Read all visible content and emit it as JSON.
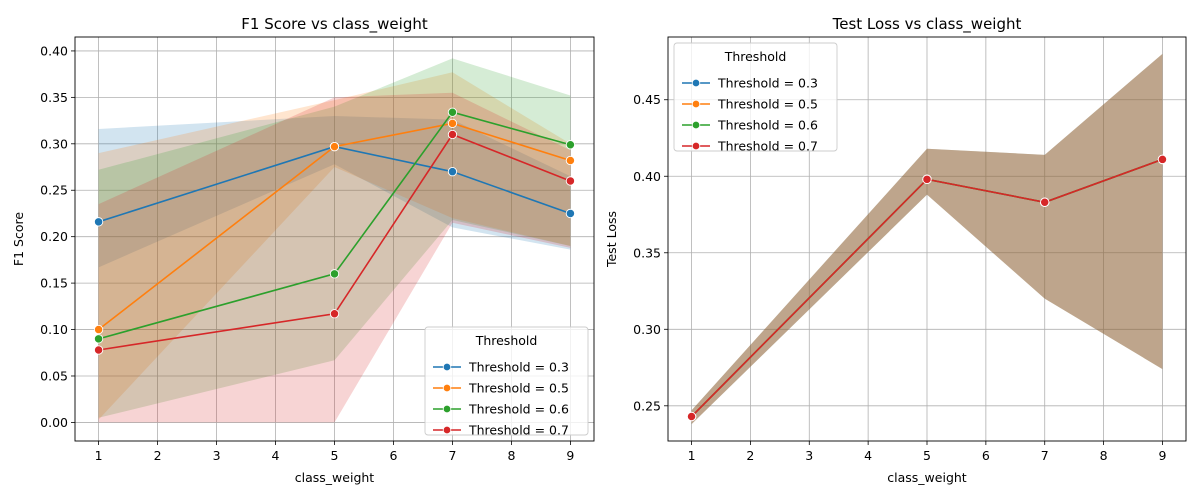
{
  "chart_data": [
    {
      "type": "line",
      "title": "F1 Score vs class_weight",
      "xlabel": "class_weight",
      "ylabel": "F1 Score",
      "xlim": [
        0.6,
        9.4
      ],
      "ylim": [
        -0.02,
        0.415
      ],
      "xticks": [
        1,
        2,
        3,
        4,
        5,
        6,
        7,
        8,
        9
      ],
      "xtick_labels": [
        "1",
        "2",
        "3",
        "4",
        "5",
        "6",
        "7",
        "8",
        "9"
      ],
      "yticks": [
        0.0,
        0.05,
        0.1,
        0.15,
        0.2,
        0.25,
        0.3,
        0.35,
        0.4
      ],
      "ytick_labels": [
        "0.00",
        "0.05",
        "0.10",
        "0.15",
        "0.20",
        "0.25",
        "0.30",
        "0.35",
        "0.40"
      ],
      "grid": true,
      "legend": {
        "title": "Threshold",
        "position": "lower-right"
      },
      "x": [
        1,
        5,
        7,
        9
      ],
      "series": [
        {
          "name": "Threshold = 0.3",
          "color": "#1f77b4",
          "values": [
            0.216,
            0.297,
            0.27,
            0.225
          ],
          "lower": [
            0.167,
            0.278,
            0.21,
            0.186
          ],
          "upper": [
            0.316,
            0.33,
            0.326,
            0.265
          ]
        },
        {
          "name": "Threshold = 0.5",
          "color": "#ff7f0e",
          "values": [
            0.1,
            0.297,
            0.322,
            0.282
          ],
          "lower": [
            0.003,
            0.275,
            0.22,
            0.19
          ],
          "upper": [
            0.29,
            0.347,
            0.377,
            0.3
          ]
        },
        {
          "name": "Threshold = 0.6",
          "color": "#2ca02c",
          "values": [
            0.09,
            0.16,
            0.334,
            0.299
          ],
          "lower": [
            0.005,
            0.067,
            0.218,
            0.19
          ],
          "upper": [
            0.272,
            0.34,
            0.392,
            0.352
          ]
        },
        {
          "name": "Threshold = 0.7",
          "color": "#d62728",
          "values": [
            0.078,
            0.117,
            0.31,
            0.26
          ],
          "lower": [
            0.0,
            0.0,
            0.215,
            0.188
          ],
          "upper": [
            0.235,
            0.35,
            0.355,
            0.293
          ]
        }
      ]
    },
    {
      "type": "line",
      "title": "Test Loss vs class_weight",
      "xlabel": "class_weight",
      "ylabel": "Test Loss",
      "xlim": [
        0.6,
        9.4
      ],
      "ylim": [
        0.227,
        0.491
      ],
      "xticks": [
        1,
        2,
        3,
        4,
        5,
        6,
        7,
        8,
        9
      ],
      "xtick_labels": [
        "1",
        "2",
        "3",
        "4",
        "5",
        "6",
        "7",
        "8",
        "9"
      ],
      "yticks": [
        0.25,
        0.3,
        0.35,
        0.4,
        0.45
      ],
      "ytick_labels": [
        "0.25",
        "0.30",
        "0.35",
        "0.40",
        "0.45"
      ],
      "grid": true,
      "legend": {
        "title": "Threshold",
        "position": "top-left"
      },
      "x": [
        1,
        5,
        7,
        9
      ],
      "series": [
        {
          "name": "Threshold = 0.3",
          "color": "#1f77b4",
          "values": [
            0.243,
            0.398,
            0.383,
            0.411
          ],
          "lower": [
            0.238,
            0.388,
            0.32,
            0.274
          ],
          "upper": [
            0.247,
            0.418,
            0.414,
            0.48
          ]
        },
        {
          "name": "Threshold = 0.5",
          "color": "#ff7f0e",
          "values": [
            0.243,
            0.398,
            0.383,
            0.411
          ],
          "lower": [
            0.238,
            0.388,
            0.32,
            0.274
          ],
          "upper": [
            0.247,
            0.418,
            0.414,
            0.48
          ]
        },
        {
          "name": "Threshold = 0.6",
          "color": "#2ca02c",
          "values": [
            0.243,
            0.398,
            0.383,
            0.411
          ],
          "lower": [
            0.238,
            0.388,
            0.32,
            0.274
          ],
          "upper": [
            0.247,
            0.418,
            0.414,
            0.48
          ]
        },
        {
          "name": "Threshold = 0.7",
          "color": "#d62728",
          "values": [
            0.243,
            0.398,
            0.383,
            0.411
          ],
          "lower": [
            0.238,
            0.388,
            0.32,
            0.274
          ],
          "upper": [
            0.247,
            0.418,
            0.414,
            0.48
          ]
        }
      ]
    }
  ]
}
